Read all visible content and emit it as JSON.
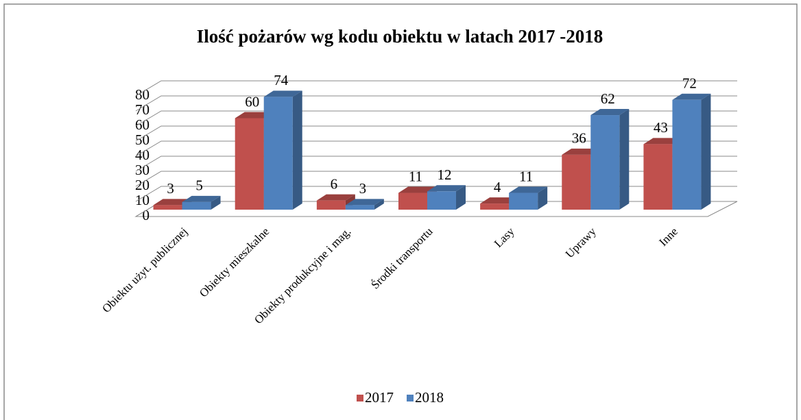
{
  "chart_data": {
    "type": "bar3d",
    "title": "Ilość pożarów wg kodu obiektu w latach 2017 -2018",
    "categories": [
      "Obiektu użyt. publicznej",
      "Obiekty mieszkalne",
      "Obiekty produkcyjne i mag.",
      "Środki transportu",
      "Lasy",
      "Uprawy",
      "Inne"
    ],
    "series": [
      {
        "name": "2017",
        "color": "#c0504d",
        "values": [
          3,
          60,
          6,
          11,
          4,
          36,
          43
        ]
      },
      {
        "name": "2018",
        "color": "#4f81bd",
        "values": [
          5,
          74,
          3,
          12,
          11,
          62,
          72
        ]
      }
    ],
    "ylim": [
      0,
      80
    ],
    "yticks": [
      0,
      10,
      20,
      30,
      40,
      50,
      60,
      70,
      80
    ],
    "grid": true,
    "legend": "bottom"
  }
}
